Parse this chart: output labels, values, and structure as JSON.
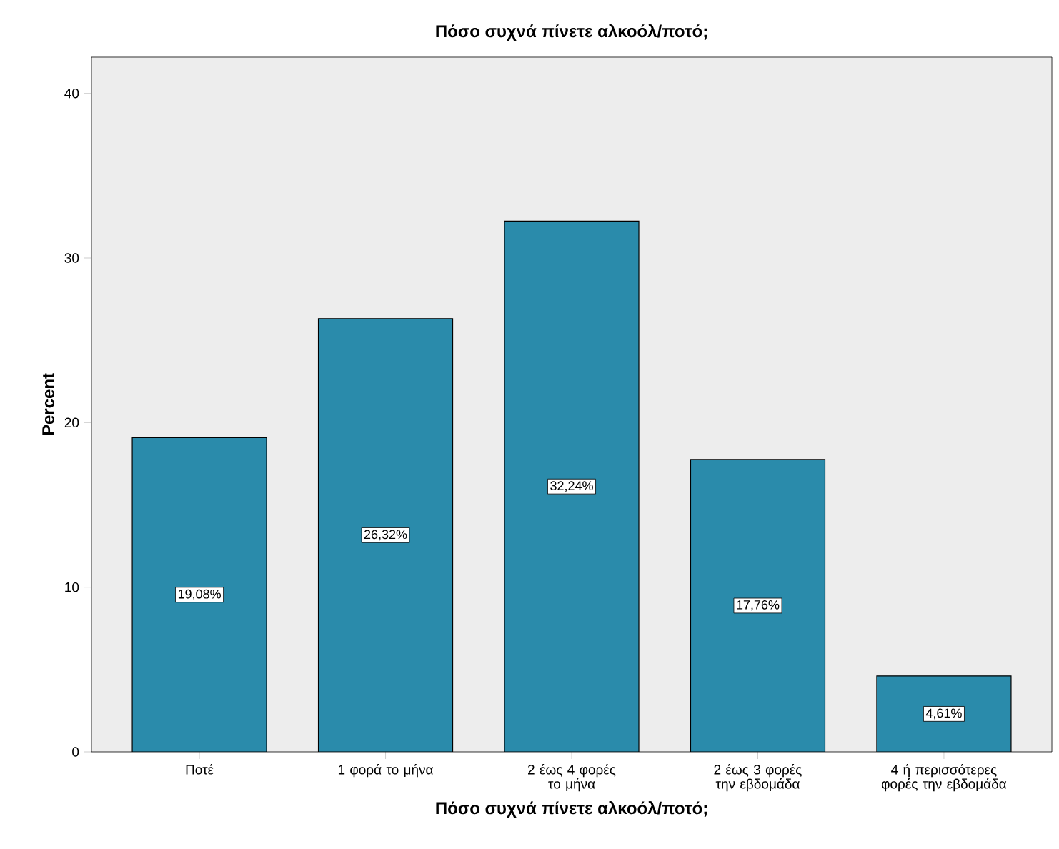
{
  "chart_data": {
    "type": "bar",
    "title": "Πόσο συχνά πίνετε αλκοόλ/ποτό;",
    "xlabel": "Πόσο συχνά πίνετε αλκοόλ/ποτό;",
    "ylabel": "Percent",
    "categories": [
      "Ποτέ",
      "1 φορά το μήνα",
      "2 έως 4 φορές το μήνα",
      "2 έως 3 φορές την εβδομάδα",
      "4 ή περισσότερες φορές την εβδομάδα"
    ],
    "values": [
      19.08,
      26.32,
      32.24,
      17.76,
      4.61
    ],
    "value_labels": [
      "19,08%",
      "26,32%",
      "32,24%",
      "17,76%",
      "4,61%"
    ],
    "color": "#2a8bab",
    "ylim": [
      0,
      42.2
    ],
    "yticks": [
      0,
      10,
      20,
      30,
      40
    ],
    "grid": false
  }
}
